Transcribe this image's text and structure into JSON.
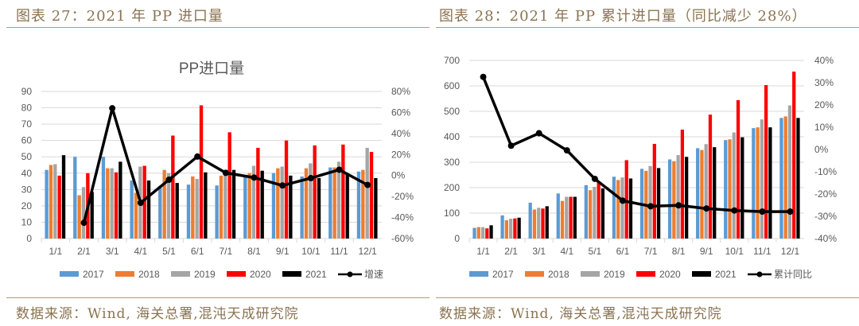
{
  "left_panel": {
    "header": "图表 27：2021 年 PP 进口量",
    "source": "数据来源：Wind, 海关总署,混沌天成研究院"
  },
  "right_panel": {
    "header": "图表 28：2021 年 PP 累计进口量（同比减少 28%）",
    "source": "数据来源：Wind, 海关总署,混沌天成研究院"
  },
  "colors": {
    "2017": "#5b9bd5",
    "2018": "#ed7d31",
    "2019": "#a5a5a5",
    "2020": "#ff0000",
    "2021": "#000000",
    "line": "#000000",
    "header": "#8a7350"
  },
  "chart_data": [
    {
      "type": "bar+line",
      "title": "PP进口量",
      "categories": [
        "1/1",
        "2/1",
        "3/1",
        "4/1",
        "5/1",
        "6/1",
        "7/1",
        "8/1",
        "9/1",
        "10/1",
        "11/1",
        "12/1"
      ],
      "ylim": [
        0,
        90
      ],
      "yticks": [
        0,
        10,
        20,
        30,
        40,
        50,
        60,
        70,
        80,
        90
      ],
      "y2lim": [
        -60,
        80
      ],
      "y2ticks": [
        "-60%",
        "-40%",
        "-20%",
        "0%",
        "20%",
        "40%",
        "60%",
        "80%"
      ],
      "grid": true,
      "legend": "bottom",
      "series": [
        {
          "name": "2017",
          "type": "bar",
          "values": [
            42,
            50,
            50,
            35.5,
            32,
            33,
            32.5,
            38,
            40,
            38,
            43.5,
            41
          ]
        },
        {
          "name": "2018",
          "type": "bar",
          "values": [
            45,
            26.5,
            43,
            28,
            42,
            38,
            38.5,
            40,
            43,
            43,
            43.5,
            42
          ]
        },
        {
          "name": "2019",
          "type": "bar",
          "values": [
            45.5,
            31.5,
            43,
            44,
            40,
            36.5,
            42,
            44.5,
            44,
            46,
            47,
            55.5
          ]
        },
        {
          "name": "2020",
          "type": "bar",
          "values": [
            38.5,
            40,
            40.5,
            44.5,
            63,
            81.5,
            65,
            55.5,
            60,
            57,
            57.5,
            53
          ]
        },
        {
          "name": "2021",
          "type": "bar",
          "values": [
            51,
            28.5,
            47,
            35.5,
            34,
            40.5,
            42,
            41.5,
            38.5,
            37,
            40,
            37
          ]
        },
        {
          "name": "增速",
          "type": "line",
          "axis": "y2",
          "values": [
            null,
            -45,
            64,
            -26,
            -4,
            18,
            2.5,
            -2,
            -9.5,
            -2.5,
            5.5,
            -9
          ]
        }
      ]
    },
    {
      "type": "bar+line",
      "title": "",
      "categories": [
        "1/1",
        "2/1",
        "3/1",
        "4/1",
        "5/1",
        "6/1",
        "7/1",
        "8/1",
        "9/1",
        "10/1",
        "11/1",
        "12/1"
      ],
      "ylim": [
        0,
        700
      ],
      "yticks": [
        0,
        100,
        200,
        300,
        400,
        500,
        600,
        700
      ],
      "y2lim": [
        -40,
        40
      ],
      "y2ticks": [
        "-40%",
        "-30%",
        "-20%",
        "-10%",
        "0%",
        "10%",
        "20%",
        "30%",
        "40%"
      ],
      "grid": true,
      "legend": "bottom",
      "series": [
        {
          "name": "2017",
          "type": "bar",
          "values": [
            42,
            91,
            141,
            177,
            210,
            243,
            274,
            311,
            355,
            387,
            434,
            474
          ]
        },
        {
          "name": "2018",
          "type": "bar",
          "values": [
            45,
            72,
            114,
            148,
            190,
            230,
            266,
            304,
            348,
            390,
            437,
            480
          ]
        },
        {
          "name": "2019",
          "type": "bar",
          "values": [
            45,
            78,
            121,
            164,
            203,
            240,
            285,
            328,
            371,
            417,
            468,
            523
          ]
        },
        {
          "name": "2020",
          "type": "bar",
          "values": [
            40,
            79,
            118,
            164,
            222,
            308,
            372,
            428,
            487,
            544,
            603,
            656
          ]
        },
        {
          "name": "2021",
          "type": "bar",
          "values": [
            52,
            82,
            127,
            164,
            197,
            236,
            277,
            321,
            359,
            398,
            437,
            474
          ]
        },
        {
          "name": "累计同比",
          "type": "line",
          "axis": "y2",
          "values": [
            32.6,
            1.7,
            7.3,
            -0.4,
            -13.2,
            -23,
            -25.5,
            -25.1,
            -26.5,
            -27.4,
            -27.9,
            -27.9
          ]
        }
      ]
    }
  ]
}
